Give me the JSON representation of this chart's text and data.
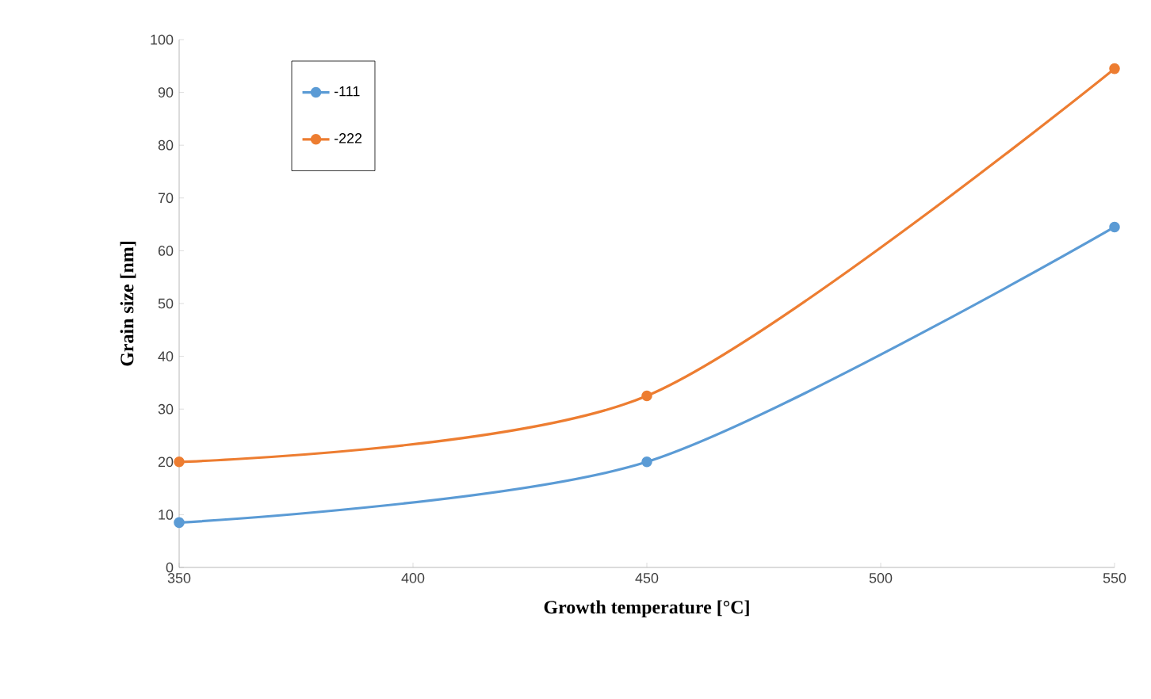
{
  "chart_data": {
    "type": "line",
    "xlabel": "Growth temperature [°C]",
    "ylabel": "Grain size [nm]",
    "x": [
      350,
      450,
      550
    ],
    "series": [
      {
        "name": "-111",
        "color": "#5b9bd5",
        "values": [
          8.5,
          20,
          64.5
        ]
      },
      {
        "name": "-222",
        "color": "#ed7d31",
        "values": [
          20,
          32.5,
          94.5
        ]
      }
    ],
    "xlim": [
      350,
      550
    ],
    "xticks": [
      350,
      400,
      450,
      500,
      550
    ],
    "ylim": [
      0,
      100
    ],
    "yticks": [
      0,
      10,
      20,
      30,
      40,
      50,
      60,
      70,
      80,
      90,
      100
    ],
    "grid": false,
    "legend": "top left",
    "marker": "circle",
    "line_style": "solid"
  }
}
